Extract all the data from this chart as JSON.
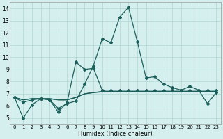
{
  "xlabel": "Humidex (Indice chaleur)",
  "background_color": "#d5efee",
  "grid_color": "#b0d8d5",
  "line_color": "#1a5f5a",
  "xlim": [
    -0.5,
    23.5
  ],
  "ylim": [
    4.5,
    14.5
  ],
  "xticks": [
    0,
    1,
    2,
    3,
    4,
    5,
    6,
    7,
    8,
    9,
    10,
    11,
    12,
    13,
    14,
    15,
    16,
    17,
    18,
    19,
    20,
    21,
    22,
    23
  ],
  "yticks": [
    5,
    6,
    7,
    8,
    9,
    10,
    11,
    12,
    13,
    14
  ],
  "series": [
    [
      6.7,
      5.0,
      6.1,
      6.6,
      6.5,
      5.8,
      6.2,
      6.4,
      7.8,
      9.3,
      11.5,
      11.2,
      13.3,
      14.1,
      11.3,
      8.3,
      8.4,
      7.8,
      7.5,
      7.3,
      7.6,
      7.3,
      6.2,
      7.1
    ],
    [
      6.7,
      6.3,
      6.5,
      6.6,
      6.5,
      5.5,
      6.3,
      9.6,
      9.0,
      9.1,
      7.3,
      7.3,
      7.3,
      7.3,
      7.3,
      7.3,
      7.3,
      7.3,
      7.3,
      7.3,
      7.3,
      7.3,
      7.3,
      7.3
    ],
    [
      6.7,
      6.5,
      6.6,
      6.6,
      6.6,
      6.5,
      6.5,
      6.7,
      7.0,
      7.1,
      7.2,
      7.2,
      7.2,
      7.2,
      7.2,
      7.2,
      7.2,
      7.2,
      7.2,
      7.2,
      7.2,
      7.2,
      7.2,
      7.2
    ],
    [
      6.7,
      6.5,
      6.6,
      6.6,
      6.6,
      6.5,
      6.5,
      6.7,
      7.0,
      7.1,
      7.15,
      7.15,
      7.15,
      7.15,
      7.15,
      7.15,
      7.15,
      7.15,
      7.15,
      7.15,
      7.15,
      7.15,
      7.15,
      7.15
    ]
  ],
  "series_markers": [
    true,
    true,
    false,
    false
  ],
  "marker_style": "D",
  "marker_size": 2.0,
  "line_width": 0.9
}
